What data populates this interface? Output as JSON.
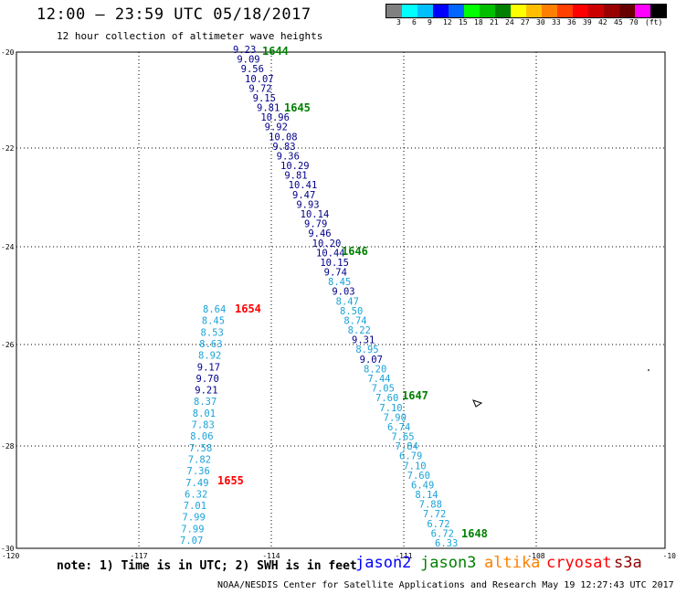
{
  "header": {
    "title": "12:00 – 23:59 UTC 05/18/2017",
    "subtitle": "12 hour collection of altimeter wave heights"
  },
  "legend": {
    "colors": [
      "#808080",
      "#00ffff",
      "#00bfff",
      "#0000ff",
      "#0066ff",
      "#00ff00",
      "#00bf00",
      "#008000",
      "#ffff00",
      "#ffbf00",
      "#ff8000",
      "#ff4000",
      "#ff0000",
      "#cc0000",
      "#990000",
      "#660000",
      "#ff00ff",
      "#000000"
    ],
    "labels": [
      "3",
      "6",
      "9",
      "12",
      "15",
      "18",
      "21",
      "24",
      "27",
      "30",
      "33",
      "36",
      "39",
      "42",
      "45",
      "70",
      "(ft)"
    ]
  },
  "axes": {
    "lat_labels": [
      "-20",
      "-22",
      "-24",
      "-26",
      "-28",
      "-30"
    ],
    "lon_labels": [
      "-120",
      "-117",
      "-114",
      "-111",
      "-108",
      "-10"
    ]
  },
  "track_a": [
    {
      "v": "9.23",
      "c": "#00008b"
    },
    {
      "v": "9.09",
      "c": "#00008b"
    },
    {
      "v": "9.56",
      "c": "#00008b"
    },
    {
      "v": "10.07",
      "c": "#00008b"
    },
    {
      "v": "9.72",
      "c": "#00008b"
    },
    {
      "v": "9.15",
      "c": "#00008b"
    },
    {
      "v": "9.81",
      "c": "#00008b"
    },
    {
      "v": "10.96",
      "c": "#00008b"
    },
    {
      "v": "9.92",
      "c": "#00008b"
    },
    {
      "v": "10.08",
      "c": "#00008b"
    },
    {
      "v": "9.83",
      "c": "#00008b"
    },
    {
      "v": "9.36",
      "c": "#00008b"
    },
    {
      "v": "10.29",
      "c": "#00008b"
    },
    {
      "v": "9.81",
      "c": "#00008b"
    },
    {
      "v": "10.41",
      "c": "#00008b"
    },
    {
      "v": "9.47",
      "c": "#00008b"
    },
    {
      "v": "9.93",
      "c": "#00008b"
    },
    {
      "v": "10.14",
      "c": "#00008b"
    },
    {
      "v": "9.79",
      "c": "#00008b"
    },
    {
      "v": "9.46",
      "c": "#00008b"
    },
    {
      "v": "10.20",
      "c": "#00008b"
    },
    {
      "v": "10.44",
      "c": "#00008b"
    },
    {
      "v": "10.15",
      "c": "#00008b"
    },
    {
      "v": "9.74",
      "c": "#00008b"
    },
    {
      "v": "8.45",
      "c": "#1aa3d9"
    },
    {
      "v": "9.03",
      "c": "#00008b"
    },
    {
      "v": "8.47",
      "c": "#1aa3d9"
    },
    {
      "v": "8.50",
      "c": "#1aa3d9"
    },
    {
      "v": "8.74",
      "c": "#1aa3d9"
    },
    {
      "v": "8.22",
      "c": "#1aa3d9"
    },
    {
      "v": "9.31",
      "c": "#00008b"
    },
    {
      "v": "8.95",
      "c": "#1aa3d9"
    },
    {
      "v": "9.07",
      "c": "#00008b"
    },
    {
      "v": "8.20",
      "c": "#1aa3d9"
    },
    {
      "v": "7.44",
      "c": "#1aa3d9"
    },
    {
      "v": "7.05",
      "c": "#1aa3d9"
    },
    {
      "v": "7.60",
      "c": "#1aa3d9"
    },
    {
      "v": "7.10",
      "c": "#1aa3d9"
    },
    {
      "v": "7.90",
      "c": "#1aa3d9"
    },
    {
      "v": "6.74",
      "c": "#1aa3d9"
    },
    {
      "v": "7.65",
      "c": "#1aa3d9"
    },
    {
      "v": "7.84",
      "c": "#1aa3d9"
    },
    {
      "v": "6.79",
      "c": "#1aa3d9"
    },
    {
      "v": "7.10",
      "c": "#1aa3d9"
    },
    {
      "v": "7.60",
      "c": "#1aa3d9"
    },
    {
      "v": "6.49",
      "c": "#1aa3d9"
    },
    {
      "v": "8.14",
      "c": "#1aa3d9"
    },
    {
      "v": "7.88",
      "c": "#1aa3d9"
    },
    {
      "v": "7.72",
      "c": "#1aa3d9"
    },
    {
      "v": "6.72",
      "c": "#1aa3d9"
    },
    {
      "v": "6.72",
      "c": "#1aa3d9"
    },
    {
      "v": "6.33",
      "c": "#1aa3d9"
    }
  ],
  "track_b": [
    {
      "v": "8.64",
      "c": "#1aa3d9"
    },
    {
      "v": "8.45",
      "c": "#1aa3d9"
    },
    {
      "v": "8.53",
      "c": "#1aa3d9"
    },
    {
      "v": "8.63",
      "c": "#1aa3d9"
    },
    {
      "v": "8.92",
      "c": "#1aa3d9"
    },
    {
      "v": "9.17",
      "c": "#00008b"
    },
    {
      "v": "9.70",
      "c": "#00008b"
    },
    {
      "v": "9.21",
      "c": "#00008b"
    },
    {
      "v": "8.37",
      "c": "#1aa3d9"
    },
    {
      "v": "8.01",
      "c": "#1aa3d9"
    },
    {
      "v": "7.83",
      "c": "#1aa3d9"
    },
    {
      "v": "8.06",
      "c": "#1aa3d9"
    },
    {
      "v": "7.58",
      "c": "#1aa3d9"
    },
    {
      "v": "7.82",
      "c": "#1aa3d9"
    },
    {
      "v": "7.36",
      "c": "#1aa3d9"
    },
    {
      "v": "7.49",
      "c": "#1aa3d9"
    },
    {
      "v": "6.32",
      "c": "#1aa3d9"
    },
    {
      "v": "7.01",
      "c": "#1aa3d9"
    },
    {
      "v": "7.99",
      "c": "#1aa3d9"
    },
    {
      "v": "7.99",
      "c": "#1aa3d9"
    },
    {
      "v": "7.07",
      "c": "#1aa3d9"
    }
  ],
  "time_labels": [
    {
      "t": "1644",
      "c": "#008000"
    },
    {
      "t": "1645",
      "c": "#008000"
    },
    {
      "t": "1646",
      "c": "#008000"
    },
    {
      "t": "1647",
      "c": "#008000"
    },
    {
      "t": "1648",
      "c": "#008000"
    },
    {
      "t": "1654",
      "c": "#ff0000"
    },
    {
      "t": "1655",
      "c": "#ff0000"
    }
  ],
  "footer": {
    "note": "note: 1) Time is in UTC; 2) SWH is in feet",
    "satellites": [
      {
        "name": "jason2",
        "color": "#0000ff"
      },
      {
        "name": "jason3",
        "color": "#008000"
      },
      {
        "name": "altika",
        "color": "#ff8000"
      },
      {
        "name": "cryosat",
        "color": "#ff0000"
      },
      {
        "name": "s3a",
        "color": "#8b0000"
      }
    ],
    "credit": "NOAA/NESDIS Center for Satellite Applications and Research    May 19 12:27:43 UTC 2017"
  }
}
